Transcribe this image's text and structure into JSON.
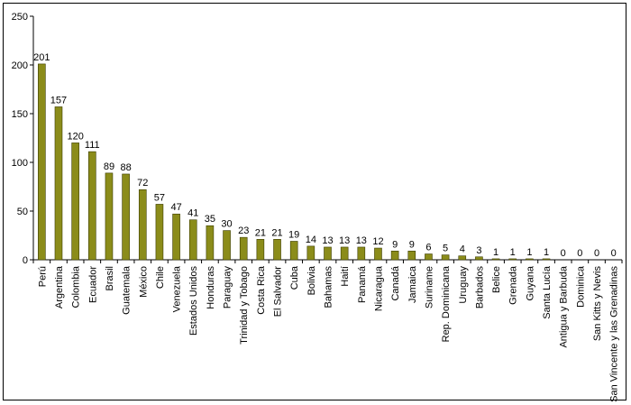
{
  "chart_data": {
    "type": "bar",
    "title": "",
    "xlabel": "",
    "ylabel": "",
    "ylim": [
      0,
      250
    ],
    "yticks": [
      0,
      50,
      100,
      150,
      200,
      250
    ],
    "grid": false,
    "legend": "none",
    "colors": {
      "bar": "#8b8c1a",
      "bar_edge": "#3b3c00",
      "axis": "#000000"
    },
    "categories": [
      "Perú",
      "Argentina",
      "Colombia",
      "Ecuador",
      "Brasil",
      "Guatemala",
      "México",
      "Chile",
      "Venezuela",
      "Estados Unidos",
      "Honduras",
      "Paraguay",
      "Trinidad y Tobago",
      "Costa Rica",
      "El Salvador",
      "Cuba",
      "Bolivia",
      "Bahamas",
      "Haití",
      "Panamá",
      "Nicaragua",
      "Canadá",
      "Jamaica",
      "Suriname",
      "Rep. Dominicana",
      "Uruguay",
      "Barbados",
      "Belice",
      "Grenada",
      "Guyana",
      "Santa Lucía",
      "Antigua y Barbuda",
      "Dominica",
      "San Kitts y Nevis",
      "San Vincente y las Grenadinas"
    ],
    "values": [
      201,
      157,
      120,
      111,
      89,
      88,
      72,
      57,
      47,
      41,
      35,
      30,
      23,
      21,
      21,
      19,
      14,
      13,
      13,
      13,
      12,
      9,
      9,
      6,
      5,
      4,
      3,
      1,
      1,
      1,
      1,
      0,
      0,
      0,
      0
    ]
  }
}
